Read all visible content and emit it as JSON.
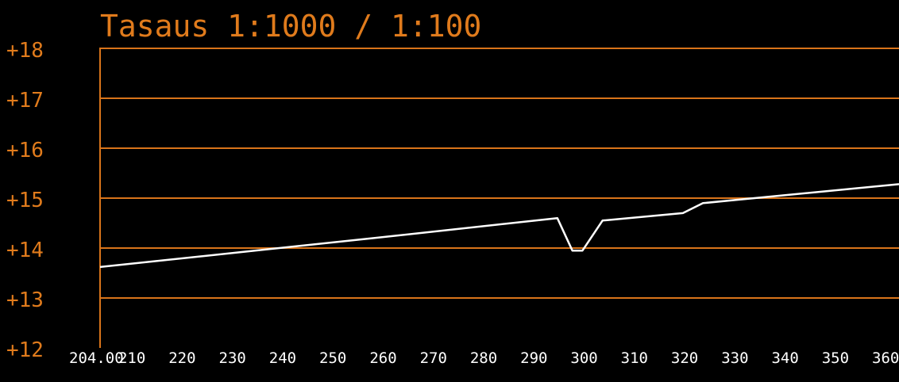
{
  "chart_data": {
    "type": "line",
    "title": "Tasaus 1:1000 / 1:100",
    "xlabel": "",
    "ylabel": "",
    "xlim": [
      204.0,
      363
    ],
    "ylim": [
      12,
      18
    ],
    "y_ticks": [
      {
        "value": 18,
        "label": "+18"
      },
      {
        "value": 17,
        "label": "+17"
      },
      {
        "value": 16,
        "label": "+16"
      },
      {
        "value": 15,
        "label": "+15"
      },
      {
        "value": 14,
        "label": "+14"
      },
      {
        "value": 13,
        "label": "+13"
      },
      {
        "value": 12,
        "label": "+12"
      }
    ],
    "x_ticks": [
      {
        "value": 204.0,
        "label": "204.00"
      },
      {
        "value": 210,
        "label": "210"
      },
      {
        "value": 220,
        "label": "220"
      },
      {
        "value": 230,
        "label": "230"
      },
      {
        "value": 240,
        "label": "240"
      },
      {
        "value": 250,
        "label": "250"
      },
      {
        "value": 260,
        "label": "260"
      },
      {
        "value": 270,
        "label": "270"
      },
      {
        "value": 280,
        "label": "280"
      },
      {
        "value": 290,
        "label": "290"
      },
      {
        "value": 300,
        "label": "300"
      },
      {
        "value": 310,
        "label": "310"
      },
      {
        "value": 320,
        "label": "320"
      },
      {
        "value": 330,
        "label": "330"
      },
      {
        "value": 340,
        "label": "340"
      },
      {
        "value": 350,
        "label": "350"
      },
      {
        "value": 360,
        "label": "360"
      }
    ],
    "grid": true,
    "colors": {
      "background": "#000000",
      "frame": "#d9741a",
      "grid": "#d9741a",
      "text": "#e07b1c",
      "x_tick_text": "#ffffff",
      "series": "#ffffff"
    },
    "series": [
      {
        "x": [
          204.0,
          258.5,
          295.0,
          298.0,
          300.0,
          304.0,
          320.0,
          324.0,
          363.0
        ],
        "y": [
          13.62,
          14.2,
          14.6,
          13.95,
          13.95,
          14.55,
          14.7,
          14.9,
          15.28
        ]
      }
    ]
  }
}
